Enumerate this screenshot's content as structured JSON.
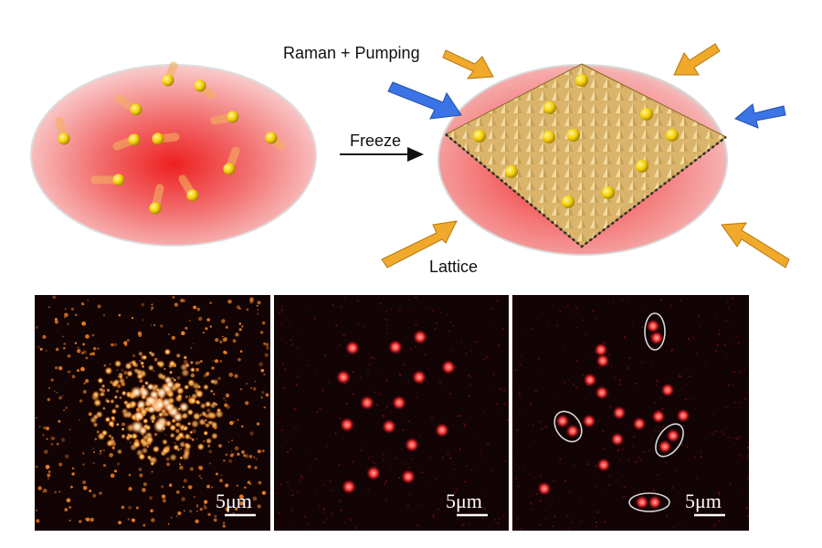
{
  "labels": {
    "raman_pumping": "Raman + Pumping",
    "freeze": "Freeze",
    "lattice": "Lattice"
  },
  "panels": [
    {
      "id": "left",
      "scale_bar": "5μm",
      "style": "thermal-cloud"
    },
    {
      "id": "middle",
      "scale_bar": "5μm",
      "style": "sparse-atoms"
    },
    {
      "id": "right",
      "scale_bar": "5μm",
      "style": "paired-atoms"
    }
  ],
  "colors": {
    "cloud": "#ee3b3b",
    "atom": "#f5d000",
    "lattice": "#e9c77e",
    "arrow_orange": "#f0a92a",
    "arrow_blue": "#3a74e6",
    "panel_bg": "#120305",
    "ellipse": "#d8d8d8"
  }
}
